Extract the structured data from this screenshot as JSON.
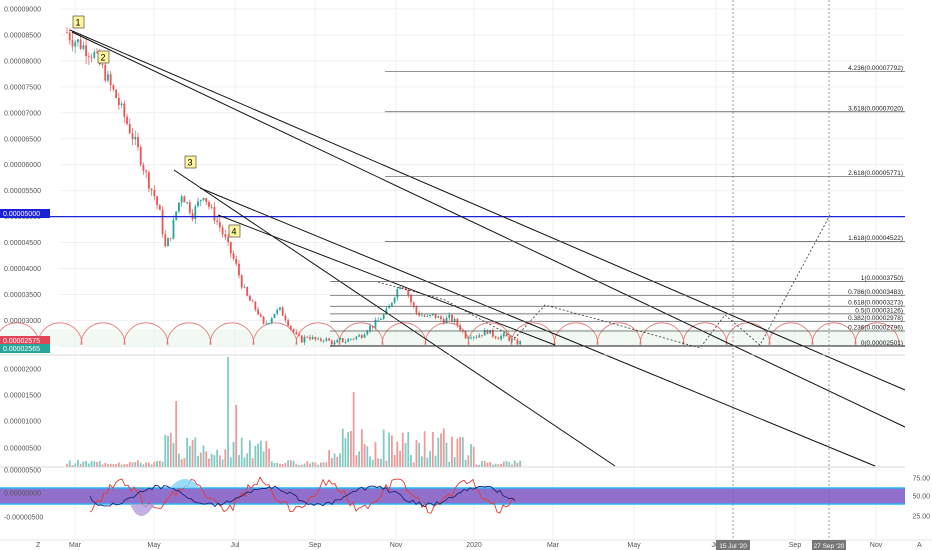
{
  "chart_data": {
    "type": "candlestick",
    "price_axis": {
      "ticks": [
        "0.00009000",
        "0.00008500",
        "0.00008000",
        "0.00007500",
        "0.00007000",
        "0.00006500",
        "0.00006000",
        "0.00005500",
        "0.00005000",
        "0.00004500",
        "0.00004000",
        "0.00003500",
        "0.00003000",
        "0.00002500"
      ],
      "tick_values": [
        9e-05,
        8.5e-05,
        8e-05,
        7.5e-05,
        7e-05,
        6.5e-05,
        6e-05,
        5.5e-05,
        5e-05,
        4.5e-05,
        4e-05,
        3.5e-05,
        3e-05,
        2.5e-05
      ],
      "ylim": [
        2.43e-05,
        9.17e-05
      ]
    },
    "price_tags": [
      {
        "label": "0.00005000",
        "value": 5e-05,
        "color": "#1e22d6"
      },
      {
        "label": "0.00002575",
        "value": 2.575e-05,
        "color": "#e0455a"
      },
      {
        "label": "0.00002565",
        "value": 2.565e-05,
        "color": "#26a69a"
      }
    ],
    "x_axis": {
      "labels": [
        "Mar",
        "May",
        "Jul",
        "Sep",
        "Nov",
        "2020",
        "Mar",
        "May",
        "Jul",
        "Sep",
        "Nov"
      ],
      "highlighted_dates": [
        "15 Jul '20",
        "27 Sep '20"
      ]
    },
    "fib_levels": [
      {
        "label": "4.236(0.00007792)",
        "value": 7.792e-05
      },
      {
        "label": "3.618(0.00007020)",
        "value": 7.02e-05
      },
      {
        "label": "2.618(0.00005771)",
        "value": 5.771e-05
      },
      {
        "label": "1.618(0.00004522)",
        "value": 4.522e-05
      },
      {
        "label": "1(0.00003750)",
        "value": 3.75e-05
      },
      {
        "label": "0.786(0.00003483)",
        "value": 3.483e-05
      },
      {
        "label": "0.618(0.00003273)",
        "value": 3.273e-05
      },
      {
        "label": "0.5(0.00003126)",
        "value": 3.126e-05
      },
      {
        "label": "0.382(0.00002978)",
        "value": 2.978e-05
      },
      {
        "label": "0.236(0.00002796)",
        "value": 2.796e-05
      },
      {
        "label": "0(0.00002501)",
        "value": 2.501e-05
      }
    ],
    "wave_labels": [
      "1",
      "2",
      "3",
      "4"
    ],
    "price_path": [
      [
        0,
        8.55e-05
      ],
      [
        2,
        8.42e-05
      ],
      [
        4,
        8.36e-05
      ],
      [
        6,
        8.28e-05
      ],
      [
        8,
        8.2e-05
      ],
      [
        10,
        8.12e-05
      ],
      [
        12,
        7.92e-05
      ],
      [
        14,
        7.75e-05
      ],
      [
        16,
        7.5e-05
      ],
      [
        18,
        7.3e-05
      ],
      [
        20,
        7.05e-05
      ],
      [
        22,
        6.8e-05
      ],
      [
        24,
        6.55e-05
      ],
      [
        26,
        6.28e-05
      ],
      [
        28,
        5.95e-05
      ],
      [
        30,
        5.65e-05
      ],
      [
        32,
        5.4e-05
      ],
      [
        34,
        5.05e-05
      ],
      [
        36,
        4.4e-05
      ],
      [
        38,
        4.65e-05
      ],
      [
        40,
        5.1e-05
      ],
      [
        42,
        5.45e-05
      ],
      [
        44,
        5.25e-05
      ],
      [
        46,
        5.05e-05
      ],
      [
        48,
        5.25e-05
      ],
      [
        50,
        5.45e-05
      ],
      [
        52,
        5.2e-05
      ],
      [
        54,
        5e-05
      ],
      [
        56,
        4.8e-05
      ],
      [
        58,
        4.55e-05
      ],
      [
        60,
        4.3e-05
      ],
      [
        62,
        4.05e-05
      ],
      [
        64,
        3.7e-05
      ],
      [
        66,
        3.45e-05
      ],
      [
        68,
        3.3e-05
      ],
      [
        70,
        3.15e-05
      ],
      [
        72,
        2.9e-05
      ],
      [
        74,
        3e-05
      ],
      [
        76,
        3.15e-05
      ],
      [
        78,
        3.2e-05
      ],
      [
        80,
        3.05e-05
      ],
      [
        82,
        2.85e-05
      ],
      [
        84,
        2.7e-05
      ],
      [
        86,
        2.62e-05
      ],
      [
        88,
        2.7e-05
      ],
      [
        90,
        2.65e-05
      ],
      [
        92,
        2.6e-05
      ],
      [
        94,
        2.65e-05
      ],
      [
        96,
        2.6e-05
      ],
      [
        98,
        2.55e-05
      ],
      [
        100,
        2.62e-05
      ],
      [
        102,
        2.6e-05
      ],
      [
        104,
        2.65e-05
      ],
      [
        106,
        2.68e-05
      ],
      [
        108,
        2.72e-05
      ],
      [
        110,
        2.85e-05
      ],
      [
        112,
        2.9e-05
      ],
      [
        114,
        3e-05
      ],
      [
        116,
        3.1e-05
      ],
      [
        118,
        3.25e-05
      ],
      [
        120,
        3.5e-05
      ],
      [
        122,
        3.7e-05
      ],
      [
        124,
        3.65e-05
      ],
      [
        126,
        3.35e-05
      ],
      [
        128,
        3.15e-05
      ],
      [
        130,
        3.1e-05
      ],
      [
        132,
        3.05e-05
      ],
      [
        134,
        3.1e-05
      ],
      [
        136,
        3.05e-05
      ],
      [
        138,
        3e-05
      ],
      [
        140,
        3.05e-05
      ],
      [
        142,
        2.98e-05
      ],
      [
        144,
        2.85e-05
      ],
      [
        146,
        2.7e-05
      ],
      [
        148,
        2.72e-05
      ],
      [
        150,
        2.7e-05
      ],
      [
        152,
        2.75e-05
      ],
      [
        154,
        2.8e-05
      ],
      [
        156,
        2.72e-05
      ],
      [
        158,
        2.68e-05
      ],
      [
        160,
        2.7e-05
      ],
      [
        162,
        2.65e-05
      ],
      [
        164,
        2.58e-05
      ],
      [
        166,
        2.57e-05
      ]
    ],
    "volume_axis": {
      "ticks": [
        "0.00002000",
        "0.00001500",
        "0.00001000",
        "0.00000500"
      ]
    },
    "indicator_axis": {
      "left_ticks": [
        "0.00000500",
        "0.00000000",
        "-0.00000500"
      ],
      "right_ticks": [
        "75.00",
        "50.00",
        "25.00"
      ]
    }
  },
  "footer": {
    "left_glyph": "Z",
    "right_glyph": "A"
  }
}
